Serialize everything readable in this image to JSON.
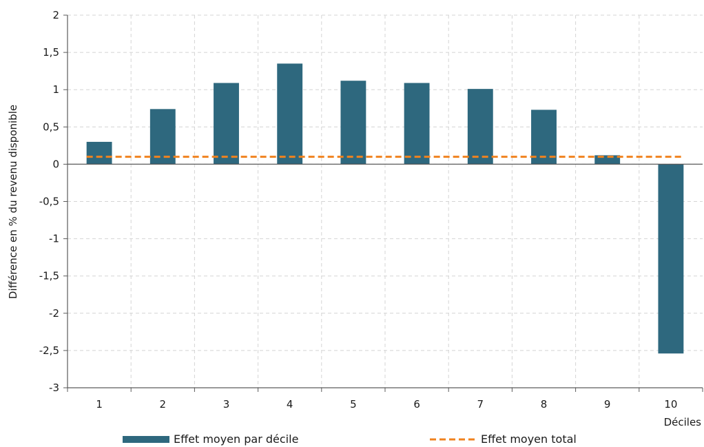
{
  "chart_data": {
    "type": "bar",
    "categories": [
      "1",
      "2",
      "3",
      "4",
      "5",
      "6",
      "7",
      "8",
      "9",
      "10"
    ],
    "series": [
      {
        "name": "Effet moyen par décile",
        "type": "bar",
        "values": [
          0.3,
          0.74,
          1.09,
          1.35,
          1.12,
          1.09,
          1.01,
          0.73,
          0.12,
          -2.54
        ]
      },
      {
        "name": "Effet moyen total",
        "type": "line",
        "style": "dashed",
        "values": [
          0.1,
          0.1,
          0.1,
          0.1,
          0.1,
          0.1,
          0.1,
          0.1,
          0.1,
          0.1
        ]
      }
    ],
    "title": "",
    "xlabel": "Déciles",
    "ylabel": "Différence en % du revenu disponible",
    "ylim": [
      -3,
      2
    ],
    "yticks": [
      2,
      1.5,
      1,
      0.5,
      0,
      -0.5,
      -1,
      -1.5,
      -2,
      -2.5,
      -3
    ],
    "ytick_labels": [
      "2",
      "1,5",
      "1",
      "0,5",
      "0",
      "-0,5",
      "-1",
      "-1,5",
      "-2",
      "-2,5",
      "-3"
    ],
    "grid": true,
    "legend_position": "bottom",
    "colors": {
      "bar": "#2e687e",
      "line": "#f0821e",
      "grid": "#d4d4d4",
      "axis": "#5a5a5a"
    }
  }
}
